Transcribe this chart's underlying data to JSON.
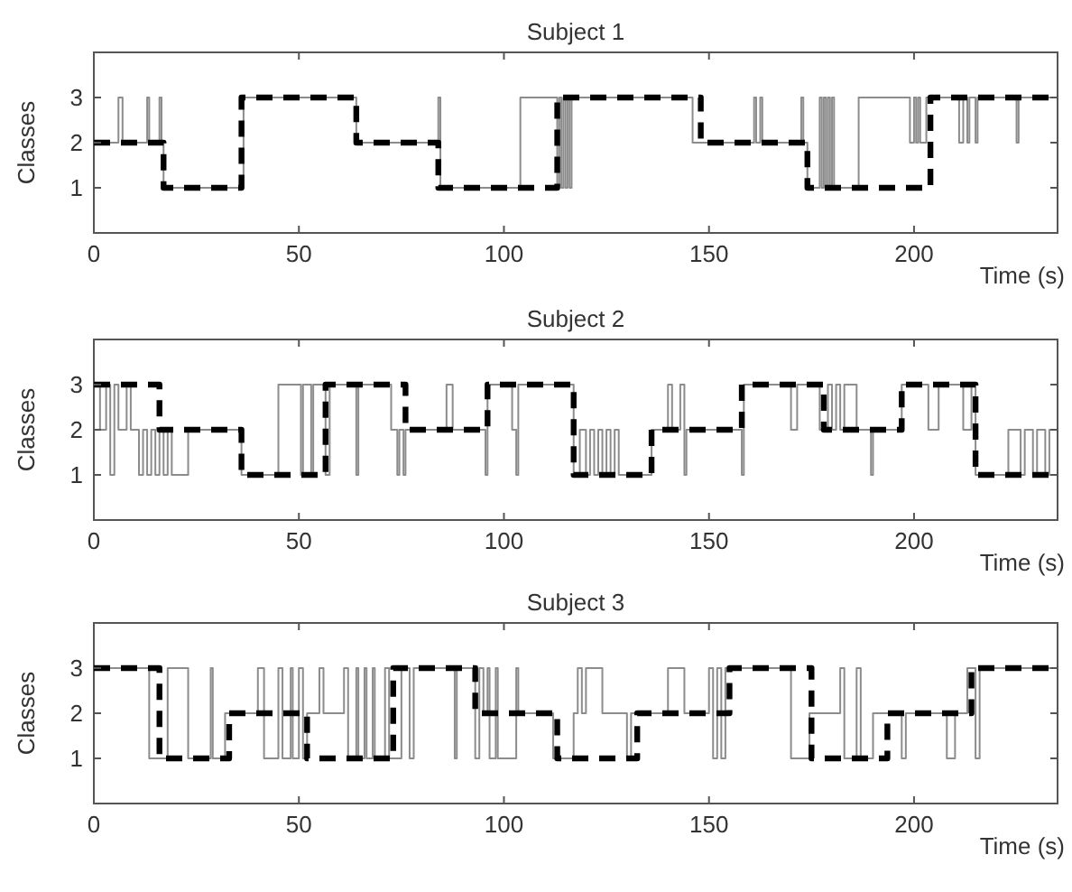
{
  "chart_data": [
    {
      "type": "step",
      "title": "Subject 1",
      "xlabel": "Time (s)",
      "ylabel": "Classes",
      "xlim": [
        0,
        235
      ],
      "ylim": [
        0,
        4
      ],
      "xticks": [
        0,
        50,
        100,
        150,
        200
      ],
      "yticks": [
        1,
        2,
        3
      ],
      "series": [
        {
          "color": "#8c8c8c",
          "line_style": "solid",
          "x": [
            0,
            6,
            7,
            13,
            13.5,
            16,
            16.5,
            17,
            36.5,
            64,
            84,
            84.5,
            104,
            113,
            113.5,
            114,
            114.5,
            115,
            115.5,
            116,
            116.5,
            146,
            161,
            161.5,
            162.5,
            163,
            172.5,
            173,
            174,
            177,
            177.5,
            178,
            178.5,
            179,
            179.5,
            180,
            180.5,
            186.5,
            199,
            200,
            200.5,
            201,
            201.5,
            203,
            211,
            212,
            213,
            213.5,
            215,
            215.5,
            225,
            225.5,
            235
          ],
          "values": [
            2,
            3,
            2,
            3,
            2,
            3,
            2,
            1,
            3,
            2,
            3,
            1,
            3,
            1,
            3,
            1,
            3,
            1,
            3,
            1,
            3,
            2,
            3,
            2,
            3,
            2,
            3,
            2,
            1,
            3,
            1,
            3,
            1,
            3,
            1,
            3,
            1,
            3,
            2,
            3,
            2,
            3,
            2,
            3,
            2,
            3,
            2,
            3,
            2,
            3,
            2,
            3,
            3
          ]
        },
        {
          "color": "#000000",
          "line_style": "dashed",
          "x": [
            0,
            17,
            36,
            64,
            84,
            113,
            148,
            174,
            204,
            235
          ],
          "values": [
            2,
            1,
            3,
            2,
            1,
            3,
            2,
            1,
            3,
            3
          ]
        }
      ]
    },
    {
      "type": "step",
      "title": "Subject 2",
      "xlabel": "Time (s)",
      "ylabel": "Classes",
      "xlim": [
        0,
        235
      ],
      "ylim": [
        0,
        4
      ],
      "xticks": [
        0,
        50,
        100,
        150,
        200
      ],
      "yticks": [
        1,
        2,
        3
      ],
      "series": [
        {
          "color": "#8c8c8c",
          "line_style": "solid",
          "x": [
            0,
            1.5,
            3,
            4,
            5,
            6,
            8,
            9,
            11,
            12,
            13,
            14,
            15,
            16,
            17,
            18,
            19,
            23,
            36,
            45,
            50.5,
            51,
            53,
            53.5,
            56.5,
            57.5,
            64,
            64.5,
            72.5,
            74,
            74.5,
            75.5,
            76,
            86,
            87.5,
            95.5,
            96,
            102,
            103,
            103.5,
            117,
            118.5,
            120,
            121,
            122,
            123,
            124,
            125,
            126,
            127,
            128,
            136,
            140,
            141,
            143,
            144,
            144.5,
            158,
            158.5,
            170,
            171.5,
            177,
            179,
            180,
            181,
            182,
            183,
            186,
            189.5,
            190,
            197,
            203.5,
            206,
            212,
            214,
            215,
            223,
            226,
            227,
            229,
            230,
            232,
            233,
            235
          ],
          "values": [
            3,
            2,
            3,
            1,
            3,
            2,
            3,
            2,
            1,
            2,
            1,
            2,
            1,
            2,
            1,
            2,
            1,
            2,
            1,
            3,
            1,
            3,
            1,
            3,
            1,
            3,
            1,
            3,
            2,
            1,
            2,
            1,
            2,
            3,
            2,
            1,
            3,
            2,
            1,
            3,
            1,
            2,
            1,
            2,
            1,
            2,
            1,
            2,
            1,
            2,
            1,
            2,
            3,
            2,
            3,
            1,
            2,
            1,
            3,
            2,
            3,
            2,
            3,
            2,
            3,
            2,
            3,
            2,
            1,
            2,
            3,
            2,
            3,
            2,
            3,
            1,
            2,
            1,
            2,
            1,
            2,
            1,
            2,
            2
          ]
        },
        {
          "color": "#000000",
          "line_style": "dashed",
          "x": [
            0,
            16,
            36,
            56.5,
            76,
            96,
            117,
            136,
            158,
            178,
            197,
            215,
            235
          ],
          "values": [
            3,
            2,
            1,
            3,
            2,
            3,
            1,
            2,
            3,
            2,
            3,
            1,
            1
          ]
        }
      ]
    },
    {
      "type": "step",
      "title": "Subject 3",
      "xlabel": "Time (s)",
      "ylabel": "Classes",
      "xlim": [
        0,
        235
      ],
      "ylim": [
        0,
        4
      ],
      "xticks": [
        0,
        50,
        100,
        150,
        200
      ],
      "yticks": [
        1,
        2,
        3
      ],
      "series": [
        {
          "color": "#8c8c8c",
          "line_style": "solid",
          "x": [
            0,
            13.5,
            18,
            23,
            28.5,
            29,
            32,
            40,
            41.5,
            45,
            46,
            48,
            48.5,
            50,
            51,
            52,
            55,
            56,
            61,
            62,
            64,
            64.5,
            66,
            66.5,
            68,
            68.5,
            71,
            72,
            75,
            77,
            78,
            88,
            88.5,
            93,
            94,
            95,
            96,
            96.5,
            98,
            98.5,
            103,
            103.5,
            112,
            117,
            118,
            119,
            120,
            124,
            130,
            131,
            140,
            144,
            150,
            151,
            152,
            153,
            154,
            170,
            174.5,
            182,
            183,
            186,
            187,
            190,
            197,
            198,
            208,
            210,
            213,
            215,
            216,
            235
          ],
          "values": [
            3,
            1,
            3,
            1,
            3,
            1,
            2,
            3,
            1,
            3,
            1,
            3,
            1,
            3,
            1,
            2,
            3,
            2,
            3,
            1,
            3,
            1,
            3,
            1,
            3,
            1,
            3,
            1,
            3,
            1,
            3,
            1,
            3,
            1,
            3,
            2,
            3,
            1,
            3,
            1,
            3,
            2,
            1,
            2,
            3,
            2,
            3,
            2,
            1,
            2,
            3,
            2,
            3,
            1,
            3,
            1,
            3,
            1,
            2,
            3,
            1,
            3,
            1,
            2,
            1,
            2,
            1,
            2,
            3,
            1,
            3,
            3
          ]
        },
        {
          "color": "#000000",
          "line_style": "dashed",
          "x": [
            0,
            16,
            33,
            52,
            73,
            93,
            113,
            132.5,
            155,
            175,
            193.5,
            214,
            235
          ],
          "values": [
            3,
            1,
            2,
            1,
            3,
            2,
            1,
            2,
            3,
            1,
            2,
            3,
            3
          ]
        }
      ]
    }
  ]
}
